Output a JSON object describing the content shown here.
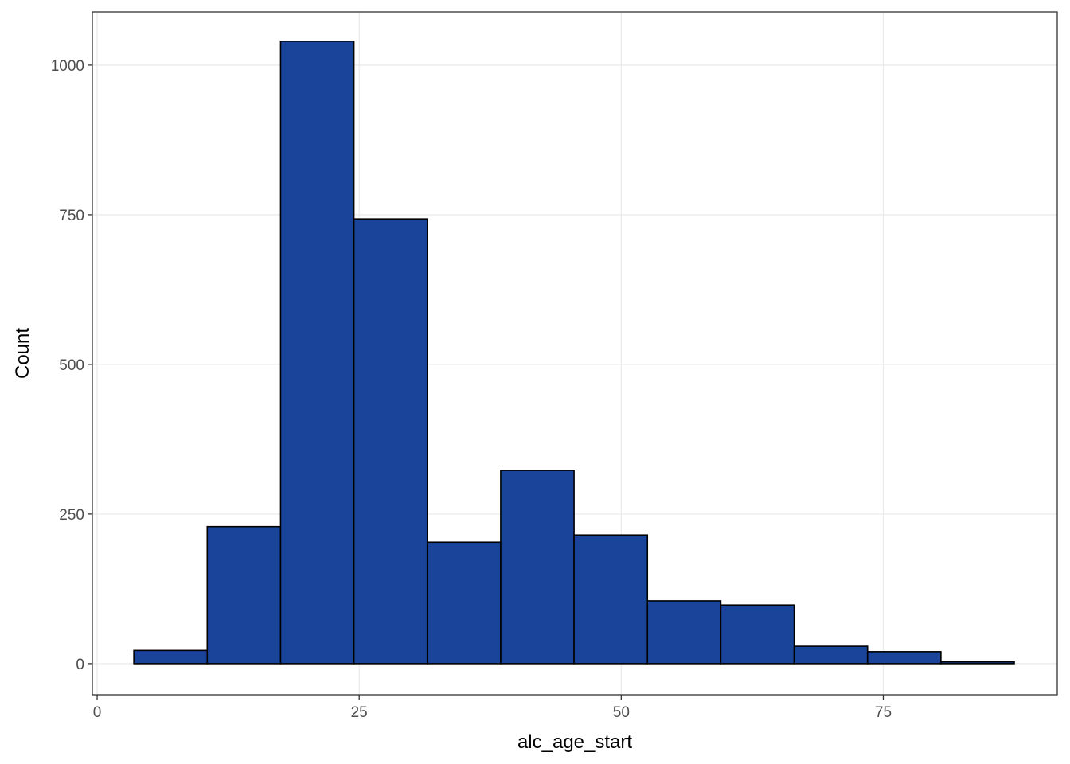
{
  "chart_data": {
    "type": "histogram",
    "x_label": "alc_age_start",
    "y_label": "Count",
    "bins": [
      3.5,
      10.5,
      17.5,
      24.5,
      31.5,
      38.5,
      45.5,
      52.5,
      59.5,
      66.5,
      73.5,
      80.5,
      87.5
    ],
    "values": [
      22,
      229,
      1040,
      743,
      203,
      323,
      215,
      105,
      98,
      29,
      20,
      3
    ],
    "color": "#1a4499",
    "edge_color": "#000000",
    "xlim": [
      -0.46,
      91.6
    ],
    "ylim": [
      -52,
      1089
    ],
    "xticks": [
      0,
      25,
      50,
      75
    ],
    "yticks": [
      0,
      250,
      500,
      750,
      1000
    ],
    "grid": true
  }
}
